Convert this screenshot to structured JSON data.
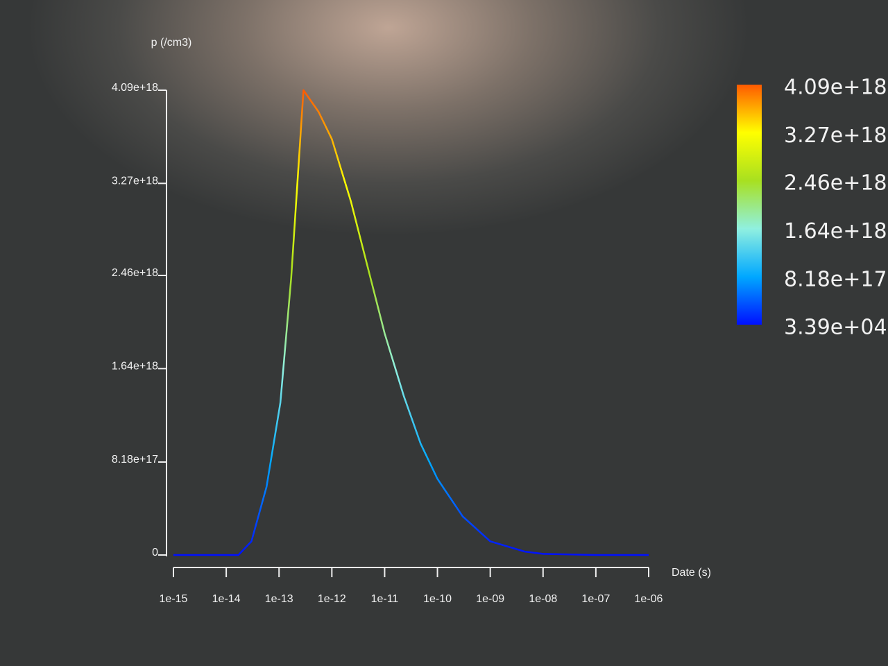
{
  "chart_data": {
    "type": "line",
    "y_label": "p (/cm3)",
    "x_label": "Date (s)",
    "xscale": "log",
    "xlim": [
      1e-15,
      1e-06
    ],
    "xticks": [
      {
        "value": 1e-15,
        "label": "1e-15"
      },
      {
        "value": 1e-14,
        "label": "1e-14"
      },
      {
        "value": 1e-13,
        "label": "1e-13"
      },
      {
        "value": 1e-12,
        "label": "1e-12"
      },
      {
        "value": 1e-11,
        "label": "1e-11"
      },
      {
        "value": 1e-10,
        "label": "1e-10"
      },
      {
        "value": 1e-09,
        "label": "1e-09"
      },
      {
        "value": 1e-08,
        "label": "1e-08"
      },
      {
        "value": 1e-07,
        "label": "1e-07"
      },
      {
        "value": 1e-06,
        "label": "1e-06"
      }
    ],
    "ylim": [
      0,
      4.09e+18
    ],
    "yticks": [
      0,
      {
        "value": 8.18e+17,
        "label": "8.18e+17"
      },
      {
        "value": 1.64e+18,
        "label": "1.64e+18"
      },
      {
        "value": 2.46e+18,
        "label": "2.46e+18"
      },
      {
        "value": 3.27e+18,
        "label": "3.27e+18"
      },
      {
        "value": 4.09e+18,
        "label": "4.09e+18"
      }
    ],
    "x": [
      1e-15,
      1.7e-14,
      3e-14,
      5.8e-14,
      1.06e-13,
      1.7e-13,
      2.9e-13,
      5.6e-13,
      1e-12,
      2.3e-12,
      5.8e-12,
      1e-11,
      2.3e-11,
      4.8e-11,
      1e-10,
      3e-10,
      1e-09,
      4.5e-09,
      1e-08,
      1e-07,
      1e-06
    ],
    "values": [
      0,
      0,
      1.2e+17,
      6e+17,
      1.34e+18,
      2.44e+18,
      4.09e+18,
      3.9e+18,
      3.66e+18,
      3.11e+18,
      2.38e+18,
      1.95e+18,
      1.4e+18,
      9.8e+17,
      6.7e+17,
      3.4e+17,
      1.2e+17,
      3e+16,
      1e+16,
      0,
      0
    ],
    "colormap": [
      "#0010ff",
      "#00a8ff",
      "#90f0e0",
      "#a8e020",
      "#ffff00",
      "#ff5a00"
    ],
    "colorbar": {
      "ticks": [
        {
          "value": 4.09e+18,
          "label": "4.09e+18"
        },
        {
          "value": 3.27e+18,
          "label": "3.27e+18"
        },
        {
          "value": 2.46e+18,
          "label": "2.46e+18"
        },
        {
          "value": 1.64e+18,
          "label": "1.64e+18"
        },
        {
          "value": 8.18e+17,
          "label": "8.18e+17"
        },
        {
          "value": 33900,
          "label": "3.39e+04"
        }
      ]
    }
  }
}
